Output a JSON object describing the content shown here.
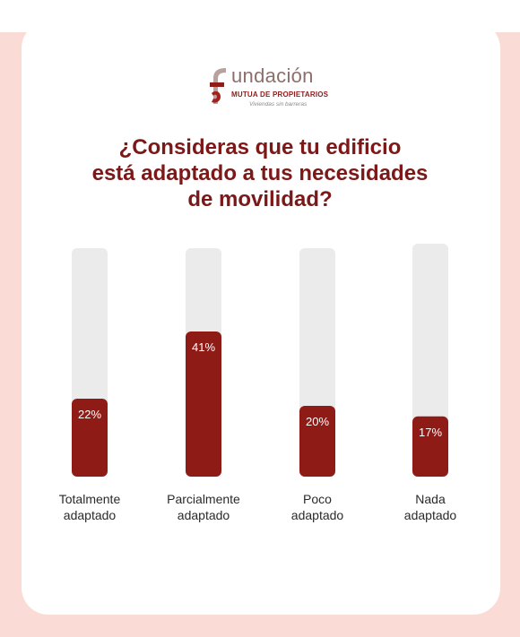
{
  "logo": {
    "word": "undación",
    "subtitle": "MUTUA DE PROPIETARIOS",
    "tagline": "Viviendas sin barreras"
  },
  "title_lines": [
    "¿Consideras que tu edificio",
    "está adaptado a tus necesidades",
    "de movilidad?"
  ],
  "chart_data": {
    "type": "bar",
    "title": "¿Consideras que tu edificio está adaptado a tus necesidades de movilidad?",
    "categories": [
      [
        "Totalmente",
        "adaptado"
      ],
      [
        "Parcialmente",
        "adaptado"
      ],
      [
        "Poco",
        "adaptado"
      ],
      [
        "Nada",
        "adaptado"
      ]
    ],
    "values": [
      22,
      41,
      20,
      17
    ],
    "value_labels": [
      "22%",
      "41%",
      "20%",
      "17%"
    ],
    "unit": "%",
    "ylim": [
      0,
      64
    ],
    "grid": false,
    "colors": {
      "bar": "#8f1b17",
      "track": "#ebebeb",
      "value_text": "#ffffff",
      "label_text": "#2a2a2a"
    }
  },
  "colors": {
    "background": "#fbdbd5",
    "card": "#ffffff",
    "title": "#7d1818"
  }
}
